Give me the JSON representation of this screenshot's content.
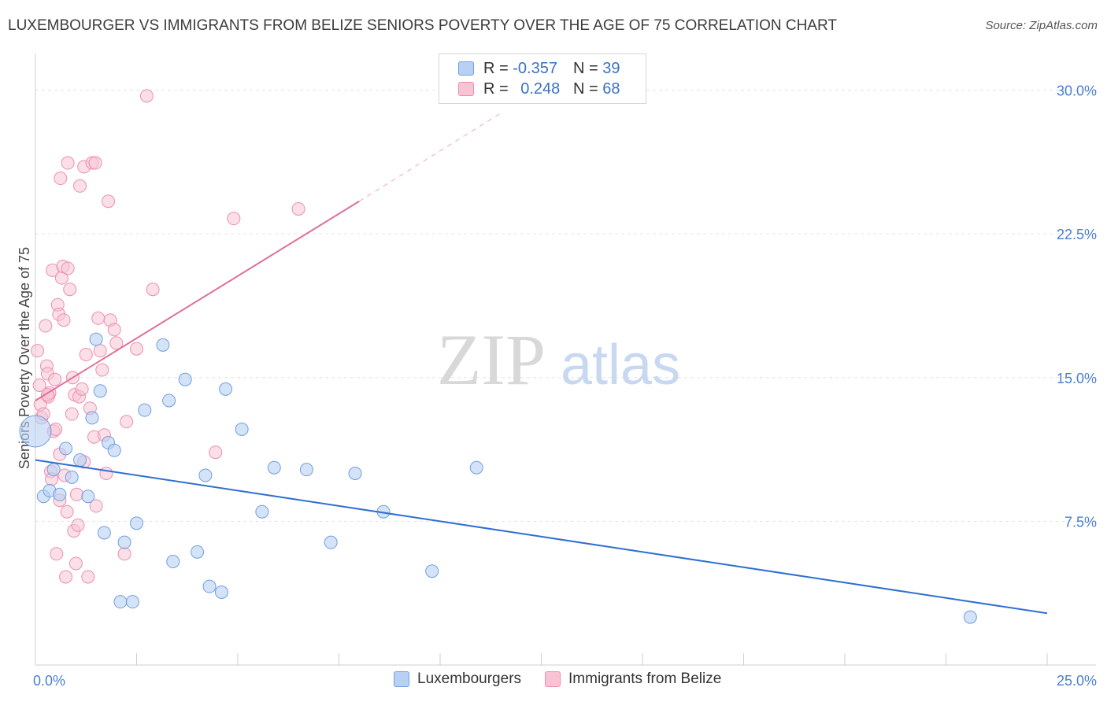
{
  "header": {
    "title": "LUXEMBOURGER VS IMMIGRANTS FROM BELIZE SENIORS POVERTY OVER THE AGE OF 75 CORRELATION CHART",
    "source": "Source: ZipAtlas.com"
  },
  "watermark": {
    "zip": "ZIP",
    "atlas": "atlas"
  },
  "legend": {
    "series": [
      {
        "r_label": "R =",
        "r_value": "-0.357",
        "n_label": "N =",
        "n_value": "39"
      },
      {
        "r_label": "R =",
        "r_value": "0.248",
        "n_label": "N =",
        "n_value": "68"
      }
    ]
  },
  "chart_data": {
    "type": "scatter",
    "title": "LUXEMBOURGER VS IMMIGRANTS FROM BELIZE SENIORS POVERTY OVER THE AGE OF 75 CORRELATION CHART",
    "xlabel": "",
    "ylabel": "Seniors Poverty Over the Age of 75",
    "xlim": [
      0,
      25
    ],
    "ylim": [
      0,
      31.5
    ],
    "x_tick_labels": [
      {
        "value": 0,
        "label": "0.0%"
      },
      {
        "value": 25,
        "label": "25.0%"
      }
    ],
    "y_tick_labels": [
      {
        "value": 7.5,
        "label": "7.5%"
      },
      {
        "value": 15,
        "label": "15.0%"
      },
      {
        "value": 22.5,
        "label": "22.5%"
      },
      {
        "value": 30,
        "label": "30.0%"
      }
    ],
    "colors": {
      "blue_fill": "#b8d0f4",
      "blue_stroke": "#6f9fe0",
      "blue_line": "#2f6fd0",
      "pink_fill": "#f8c4d4",
      "pink_stroke": "#ec8fb0",
      "pink_line": "#e0709a",
      "tick_label": "#4a7fd0"
    },
    "series": [
      {
        "name": "Luxembourgers",
        "trend": {
          "x0": 0,
          "y0": 10.7,
          "x1": 25,
          "y1": 2.7
        },
        "points": [
          {
            "x": 0.0,
            "y": 12.2,
            "big": true
          },
          {
            "x": 0.2,
            "y": 8.8
          },
          {
            "x": 0.35,
            "y": 9.1
          },
          {
            "x": 0.45,
            "y": 10.2
          },
          {
            "x": 0.6,
            "y": 8.9
          },
          {
            "x": 0.75,
            "y": 11.3
          },
          {
            "x": 0.9,
            "y": 9.8
          },
          {
            "x": 1.1,
            "y": 10.7
          },
          {
            "x": 1.3,
            "y": 8.8
          },
          {
            "x": 1.4,
            "y": 12.9
          },
          {
            "x": 1.5,
            "y": 17.0
          },
          {
            "x": 1.6,
            "y": 14.3
          },
          {
            "x": 1.7,
            "y": 6.9
          },
          {
            "x": 1.8,
            "y": 11.6
          },
          {
            "x": 1.95,
            "y": 11.2
          },
          {
            "x": 2.1,
            "y": 3.3
          },
          {
            "x": 2.2,
            "y": 6.4
          },
          {
            "x": 2.4,
            "y": 3.3
          },
          {
            "x": 2.5,
            "y": 7.4
          },
          {
            "x": 2.7,
            "y": 13.3
          },
          {
            "x": 3.15,
            "y": 16.7
          },
          {
            "x": 3.3,
            "y": 13.8
          },
          {
            "x": 3.4,
            "y": 5.4
          },
          {
            "x": 3.7,
            "y": 14.9
          },
          {
            "x": 4.0,
            "y": 5.9
          },
          {
            "x": 4.2,
            "y": 9.9
          },
          {
            "x": 4.3,
            "y": 4.1
          },
          {
            "x": 4.6,
            "y": 3.8
          },
          {
            "x": 4.7,
            "y": 14.4
          },
          {
            "x": 5.1,
            "y": 12.3
          },
          {
            "x": 5.6,
            "y": 8.0
          },
          {
            "x": 5.9,
            "y": 10.3
          },
          {
            "x": 6.7,
            "y": 10.2
          },
          {
            "x": 7.3,
            "y": 6.4
          },
          {
            "x": 7.9,
            "y": 10.0
          },
          {
            "x": 8.6,
            "y": 8.0
          },
          {
            "x": 9.8,
            "y": 4.9
          },
          {
            "x": 10.9,
            "y": 10.3
          },
          {
            "x": 23.1,
            "y": 2.5
          }
        ]
      },
      {
        "name": "Immigrants from Belize",
        "trend": {
          "x0": 0,
          "y0": 13.8,
          "x1": 8.0,
          "y1": 24.2,
          "dash_x1": 11.5,
          "dash_y1": 28.8
        },
        "points": [
          {
            "x": 0.05,
            "y": 16.4
          },
          {
            "x": 0.1,
            "y": 14.6
          },
          {
            "x": 0.12,
            "y": 13.6
          },
          {
            "x": 0.15,
            "y": 12.9
          },
          {
            "x": 0.2,
            "y": 13.1
          },
          {
            "x": 0.25,
            "y": 17.7
          },
          {
            "x": 0.28,
            "y": 15.6
          },
          {
            "x": 0.3,
            "y": 15.2
          },
          {
            "x": 0.32,
            "y": 14.0
          },
          {
            "x": 0.35,
            "y": 14.2
          },
          {
            "x": 0.38,
            "y": 10.1
          },
          {
            "x": 0.4,
            "y": 9.7
          },
          {
            "x": 0.42,
            "y": 20.6
          },
          {
            "x": 0.45,
            "y": 12.2
          },
          {
            "x": 0.48,
            "y": 14.9
          },
          {
            "x": 0.5,
            "y": 12.3
          },
          {
            "x": 0.52,
            "y": 5.8
          },
          {
            "x": 0.55,
            "y": 18.8
          },
          {
            "x": 0.58,
            "y": 18.3
          },
          {
            "x": 0.6,
            "y": 8.6
          },
          {
            "x": 0.62,
            "y": 25.4
          },
          {
            "x": 0.65,
            "y": 20.2
          },
          {
            "x": 0.68,
            "y": 20.8
          },
          {
            "x": 0.7,
            "y": 18.0
          },
          {
            "x": 0.72,
            "y": 9.9
          },
          {
            "x": 0.75,
            "y": 4.6
          },
          {
            "x": 0.78,
            "y": 8.0
          },
          {
            "x": 0.8,
            "y": 20.7
          },
          {
            "x": 0.8,
            "y": 26.2
          },
          {
            "x": 0.85,
            "y": 19.6
          },
          {
            "x": 0.9,
            "y": 13.1
          },
          {
            "x": 0.92,
            "y": 15.0
          },
          {
            "x": 0.95,
            "y": 7.0
          },
          {
            "x": 0.97,
            "y": 14.1
          },
          {
            "x": 1.0,
            "y": 5.3
          },
          {
            "x": 1.02,
            "y": 8.9
          },
          {
            "x": 1.05,
            "y": 7.3
          },
          {
            "x": 1.08,
            "y": 14.0
          },
          {
            "x": 1.1,
            "y": 25.0
          },
          {
            "x": 1.15,
            "y": 14.4
          },
          {
            "x": 1.2,
            "y": 26.0
          },
          {
            "x": 1.25,
            "y": 16.2
          },
          {
            "x": 1.3,
            "y": 4.6
          },
          {
            "x": 1.35,
            "y": 13.4
          },
          {
            "x": 1.4,
            "y": 26.2
          },
          {
            "x": 1.45,
            "y": 11.9
          },
          {
            "x": 1.48,
            "y": 26.2
          },
          {
            "x": 1.5,
            "y": 8.3
          },
          {
            "x": 1.55,
            "y": 18.1
          },
          {
            "x": 1.6,
            "y": 16.4
          },
          {
            "x": 1.65,
            "y": 15.4
          },
          {
            "x": 1.7,
            "y": 12.0
          },
          {
            "x": 1.75,
            "y": 10.0
          },
          {
            "x": 1.8,
            "y": 24.2
          },
          {
            "x": 1.85,
            "y": 18.0
          },
          {
            "x": 1.95,
            "y": 17.5
          },
          {
            "x": 2.0,
            "y": 16.8
          },
          {
            "x": 2.2,
            "y": 5.8
          },
          {
            "x": 2.25,
            "y": 12.7
          },
          {
            "x": 2.5,
            "y": 16.5
          },
          {
            "x": 2.75,
            "y": 29.7
          },
          {
            "x": 2.9,
            "y": 19.6
          },
          {
            "x": 4.45,
            "y": 11.1
          },
          {
            "x": 4.9,
            "y": 23.3
          },
          {
            "x": 6.5,
            "y": 23.8
          },
          {
            "x": 0.3,
            "y": 14.1
          },
          {
            "x": 0.6,
            "y": 11.0
          },
          {
            "x": 1.2,
            "y": 10.6
          }
        ]
      }
    ],
    "legend_position": "bottom-center"
  }
}
